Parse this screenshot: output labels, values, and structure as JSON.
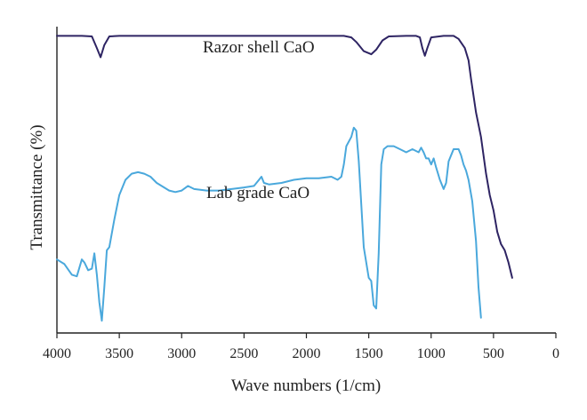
{
  "chart_data": {
    "type": "line",
    "title": "",
    "xlabel": "Wave numbers (1/cm)",
    "ylabel": "Transmittance (%)",
    "xlim": [
      4000,
      0
    ],
    "x_reversed": true,
    "xticks": [
      4000,
      3500,
      3000,
      2500,
      2000,
      1500,
      1000,
      500,
      0
    ],
    "y_tick_labels": false,
    "ylim": [
      0,
      100
    ],
    "grid": false,
    "series": [
      {
        "name": "Razor shell CaO",
        "color": "#2e2463",
        "points": [
          [
            4000,
            97
          ],
          [
            3800,
            97
          ],
          [
            3720,
            96.8
          ],
          [
            3680,
            93
          ],
          [
            3650,
            90
          ],
          [
            3620,
            94
          ],
          [
            3580,
            96.8
          ],
          [
            3500,
            97
          ],
          [
            3000,
            97
          ],
          [
            2500,
            97
          ],
          [
            2000,
            97
          ],
          [
            1700,
            97
          ],
          [
            1640,
            96.5
          ],
          [
            1600,
            95
          ],
          [
            1540,
            92
          ],
          [
            1480,
            91
          ],
          [
            1440,
            92.5
          ],
          [
            1390,
            95.5
          ],
          [
            1340,
            96.8
          ],
          [
            1200,
            97
          ],
          [
            1120,
            97
          ],
          [
            1090,
            96.5
          ],
          [
            1070,
            93
          ],
          [
            1050,
            90.5
          ],
          [
            1030,
            93
          ],
          [
            1000,
            96.5
          ],
          [
            900,
            97
          ],
          [
            820,
            97
          ],
          [
            780,
            96
          ],
          [
            730,
            93
          ],
          [
            700,
            89
          ],
          [
            680,
            83
          ],
          [
            640,
            72
          ],
          [
            600,
            64
          ],
          [
            560,
            52
          ],
          [
            530,
            45
          ],
          [
            500,
            40
          ],
          [
            470,
            33
          ],
          [
            440,
            29
          ],
          [
            410,
            27
          ],
          [
            380,
            23
          ],
          [
            350,
            18
          ]
        ]
      },
      {
        "name": "Lab grade CaO",
        "color": "#4aa8dc",
        "points": [
          [
            4000,
            24
          ],
          [
            3940,
            22.5
          ],
          [
            3880,
            19
          ],
          [
            3840,
            18.5
          ],
          [
            3800,
            24
          ],
          [
            3780,
            23
          ],
          [
            3750,
            20.5
          ],
          [
            3720,
            21
          ],
          [
            3700,
            26
          ],
          [
            3680,
            19
          ],
          [
            3660,
            10
          ],
          [
            3640,
            4
          ],
          [
            3620,
            15
          ],
          [
            3600,
            27
          ],
          [
            3580,
            28
          ],
          [
            3540,
            37
          ],
          [
            3500,
            45
          ],
          [
            3450,
            50
          ],
          [
            3400,
            52
          ],
          [
            3350,
            52.5
          ],
          [
            3300,
            52
          ],
          [
            3250,
            51
          ],
          [
            3200,
            49
          ],
          [
            3100,
            46.5
          ],
          [
            3050,
            46
          ],
          [
            3000,
            46.5
          ],
          [
            2950,
            48
          ],
          [
            2900,
            47
          ],
          [
            2800,
            46.5
          ],
          [
            2700,
            46.5
          ],
          [
            2600,
            47
          ],
          [
            2500,
            47.5
          ],
          [
            2420,
            48
          ],
          [
            2380,
            50
          ],
          [
            2360,
            51
          ],
          [
            2340,
            49
          ],
          [
            2300,
            48.5
          ],
          [
            2200,
            49
          ],
          [
            2100,
            50
          ],
          [
            2000,
            50.5
          ],
          [
            1900,
            50.5
          ],
          [
            1800,
            51
          ],
          [
            1750,
            50
          ],
          [
            1720,
            51
          ],
          [
            1700,
            55
          ],
          [
            1680,
            61
          ],
          [
            1640,
            64
          ],
          [
            1620,
            67
          ],
          [
            1600,
            66
          ],
          [
            1580,
            56
          ],
          [
            1560,
            42
          ],
          [
            1540,
            28
          ],
          [
            1500,
            18
          ],
          [
            1480,
            17
          ],
          [
            1460,
            9
          ],
          [
            1440,
            8
          ],
          [
            1420,
            26
          ],
          [
            1400,
            55
          ],
          [
            1380,
            60
          ],
          [
            1350,
            61
          ],
          [
            1300,
            61
          ],
          [
            1250,
            60
          ],
          [
            1200,
            59
          ],
          [
            1150,
            60
          ],
          [
            1100,
            59
          ],
          [
            1080,
            60.5
          ],
          [
            1060,
            59
          ],
          [
            1040,
            57
          ],
          [
            1020,
            57
          ],
          [
            1000,
            55
          ],
          [
            980,
            57
          ],
          [
            960,
            54
          ],
          [
            930,
            50
          ],
          [
            900,
            47
          ],
          [
            880,
            49
          ],
          [
            860,
            56
          ],
          [
            820,
            60
          ],
          [
            780,
            60
          ],
          [
            760,
            58
          ],
          [
            740,
            55
          ],
          [
            720,
            53
          ],
          [
            700,
            50
          ],
          [
            670,
            43
          ],
          [
            640,
            30
          ],
          [
            620,
            15
          ],
          [
            600,
            5
          ]
        ]
      }
    ]
  }
}
